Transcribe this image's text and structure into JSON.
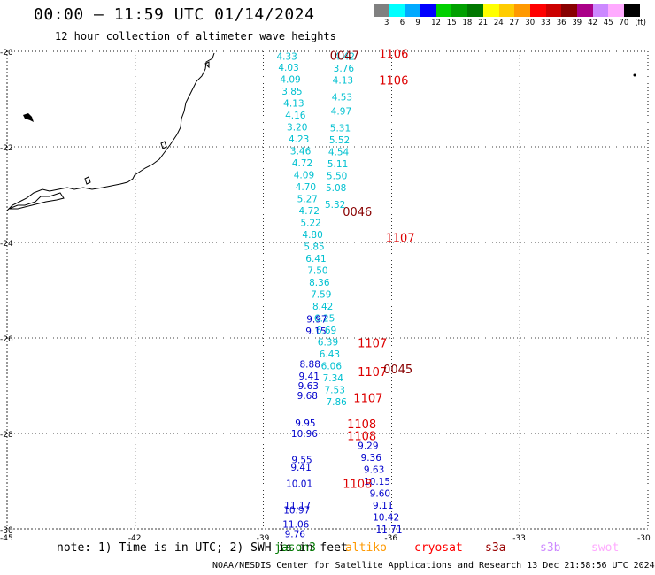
{
  "header": {
    "title": "00:00 – 11:59 UTC 01/14/2024",
    "subtitle": "12 hour collection of altimeter wave heights"
  },
  "color_scale": {
    "labels": [
      "3",
      "6",
      "9",
      "12",
      "15",
      "18",
      "21",
      "24",
      "27",
      "30",
      "33",
      "36",
      "39",
      "42",
      "45",
      "70",
      "(ft)"
    ],
    "colors": [
      "#808080",
      "#00ffff",
      "#00aaff",
      "#0000ff",
      "#00d000",
      "#00a000",
      "#007800",
      "#ffff00",
      "#ffcc00",
      "#ff9900",
      "#ff0000",
      "#cc0000",
      "#880000",
      "#aa0088",
      "#cc88ff",
      "#ffaaff",
      "#000000"
    ]
  },
  "axes": {
    "lat_labels": [
      "-20",
      "-22",
      "-24",
      "-26",
      "-28",
      "-30"
    ],
    "lon_labels": [
      "-45",
      "-42",
      "-39",
      "-36",
      "-33",
      "-30"
    ]
  },
  "map_data": {
    "type": "altimeter wave heights",
    "lat_range": [
      -30,
      -20
    ],
    "lon_range": [
      -45,
      -30
    ],
    "tracks": [
      {
        "color": "#00c0d0",
        "points": [
          {
            "lat": -20.1,
            "lon": -38.45,
            "v": "4.33"
          },
          {
            "lat": -20.33,
            "lon": -38.41,
            "v": "4.03"
          },
          {
            "lat": -20.58,
            "lon": -38.37,
            "v": "4.09"
          },
          {
            "lat": -20.83,
            "lon": -38.33,
            "v": "3.85"
          },
          {
            "lat": -21.08,
            "lon": -38.29,
            "v": "4.13"
          },
          {
            "lat": -21.33,
            "lon": -38.25,
            "v": "4.16"
          },
          {
            "lat": -21.58,
            "lon": -38.21,
            "v": "3.20"
          },
          {
            "lat": -21.83,
            "lon": -38.17,
            "v": "4.23"
          },
          {
            "lat": -22.08,
            "lon": -38.13,
            "v": "3.46"
          },
          {
            "lat": -22.33,
            "lon": -38.09,
            "v": "4.72"
          },
          {
            "lat": -22.58,
            "lon": -38.05,
            "v": "4.09"
          },
          {
            "lat": -22.83,
            "lon": -38.01,
            "v": "4.70"
          },
          {
            "lat": -23.08,
            "lon": -37.97,
            "v": "5.27"
          },
          {
            "lat": -23.33,
            "lon": -37.93,
            "v": "4.72"
          },
          {
            "lat": -23.58,
            "lon": -37.89,
            "v": "5.22"
          },
          {
            "lat": -23.83,
            "lon": -37.85,
            "v": "4.80"
          },
          {
            "lat": -24.08,
            "lon": -37.81,
            "v": "5.85"
          },
          {
            "lat": -24.33,
            "lon": -37.77,
            "v": "6.41"
          },
          {
            "lat": -24.58,
            "lon": -37.73,
            "v": "7.50"
          },
          {
            "lat": -24.83,
            "lon": -37.69,
            "v": "8.36"
          },
          {
            "lat": -25.08,
            "lon": -37.65,
            "v": "7.59"
          },
          {
            "lat": -25.33,
            "lon": -37.61,
            "v": "8.42"
          },
          {
            "lat": -25.58,
            "lon": -37.57,
            "v": "6.25"
          },
          {
            "lat": -25.83,
            "lon": -37.53,
            "v": "6.69"
          },
          {
            "lat": -26.08,
            "lon": -37.49,
            "v": "6.39"
          },
          {
            "lat": -26.33,
            "lon": -37.45,
            "v": "6.43"
          },
          {
            "lat": -26.58,
            "lon": -37.41,
            "v": "6.06"
          },
          {
            "lat": -26.83,
            "lon": -37.37,
            "v": "7.34"
          },
          {
            "lat": -27.08,
            "lon": -37.33,
            "v": "7.53"
          },
          {
            "lat": -27.33,
            "lon": -37.29,
            "v": "7.86"
          }
        ]
      },
      {
        "color": "#00c0d0",
        "points": [
          {
            "lat": -20.1,
            "lon": -37.1,
            "v": "4.42"
          },
          {
            "lat": -20.35,
            "lon": -37.12,
            "v": "3.76"
          },
          {
            "lat": -20.6,
            "lon": -37.14,
            "v": "4.13"
          },
          {
            "lat": -20.95,
            "lon": -37.16,
            "v": "4.53"
          },
          {
            "lat": -21.25,
            "lon": -37.18,
            "v": "4.97"
          },
          {
            "lat": -21.6,
            "lon": -37.2,
            "v": "5.31"
          },
          {
            "lat": -21.85,
            "lon": -37.22,
            "v": "5.52"
          },
          {
            "lat": -22.1,
            "lon": -37.24,
            "v": "4.54"
          },
          {
            "lat": -22.35,
            "lon": -37.26,
            "v": "5.11"
          },
          {
            "lat": -22.6,
            "lon": -37.28,
            "v": "5.50"
          },
          {
            "lat": -22.85,
            "lon": -37.3,
            "v": "5.08"
          },
          {
            "lat": -23.2,
            "lon": -37.32,
            "v": "5.32"
          }
        ]
      },
      {
        "color": "#0000cc",
        "points": [
          {
            "lat": -25.6,
            "lon": -37.75,
            "v": "9.97"
          },
          {
            "lat": -25.85,
            "lon": -37.77,
            "v": "9.15"
          },
          {
            "lat": -26.55,
            "lon": -37.91,
            "v": "8.88"
          },
          {
            "lat": -26.8,
            "lon": -37.93,
            "v": "9.41"
          },
          {
            "lat": -27.0,
            "lon": -37.95,
            "v": "9.63"
          },
          {
            "lat": -27.2,
            "lon": -37.97,
            "v": "9.68"
          },
          {
            "lat": -27.78,
            "lon": -38.02,
            "v": "9.95"
          },
          {
            "lat": -28.0,
            "lon": -38.04,
            "v": "10.96"
          },
          {
            "lat": -28.55,
            "lon": -38.1,
            "v": "9.55"
          },
          {
            "lat": -28.7,
            "lon": -38.12,
            "v": "9.41"
          },
          {
            "lat": -29.05,
            "lon": -38.16,
            "v": "10.01"
          },
          {
            "lat": -29.5,
            "lon": -38.2,
            "v": "11.17"
          },
          {
            "lat": -29.6,
            "lon": -38.22,
            "v": "10.97"
          },
          {
            "lat": -29.9,
            "lon": -38.24,
            "v": "11.06"
          },
          {
            "lat": -30.1,
            "lon": -38.26,
            "v": "9.76"
          }
        ]
      },
      {
        "color": "#0000cc",
        "points": [
          {
            "lat": -28.25,
            "lon": -36.55,
            "v": "9.29"
          },
          {
            "lat": -28.5,
            "lon": -36.48,
            "v": "9.36"
          },
          {
            "lat": -28.75,
            "lon": -36.41,
            "v": "9.63"
          },
          {
            "lat": -29.0,
            "lon": -36.34,
            "v": "10.15"
          },
          {
            "lat": -29.25,
            "lon": -36.27,
            "v": "9.60"
          },
          {
            "lat": -29.5,
            "lon": -36.2,
            "v": "9.11"
          },
          {
            "lat": -29.75,
            "lon": -36.13,
            "v": "10.42"
          },
          {
            "lat": -30.0,
            "lon": -36.06,
            "v": "11.71"
          }
        ]
      }
    ],
    "time_labels": [
      {
        "lat": -20.08,
        "lon": -37.1,
        "v": "0047",
        "color": "#880000"
      },
      {
        "lat": -20.05,
        "lon": -35.95,
        "v": "1106",
        "color": "#dd0000"
      },
      {
        "lat": -20.6,
        "lon": -35.95,
        "v": "1106",
        "color": "#dd0000"
      },
      {
        "lat": -23.35,
        "lon": -36.8,
        "v": "0046",
        "color": "#880000"
      },
      {
        "lat": -23.9,
        "lon": -35.8,
        "v": "1107",
        "color": "#dd0000"
      },
      {
        "lat": -26.1,
        "lon": -36.45,
        "v": "1107",
        "color": "#dd0000"
      },
      {
        "lat": -26.7,
        "lon": -36.45,
        "v": "1107",
        "color": "#dd0000"
      },
      {
        "lat": -26.65,
        "lon": -35.85,
        "v": "0045",
        "color": "#880000"
      },
      {
        "lat": -27.25,
        "lon": -36.55,
        "v": "1107",
        "color": "#dd0000"
      },
      {
        "lat": -27.8,
        "lon": -36.7,
        "v": "1108",
        "color": "#dd0000"
      },
      {
        "lat": -28.05,
        "lon": -36.7,
        "v": "1108",
        "color": "#dd0000"
      },
      {
        "lat": -29.05,
        "lon": -36.8,
        "v": "1108",
        "color": "#dd0000"
      }
    ]
  },
  "footer": {
    "note": "note:  1) Time is in UTC;  2) SWH is in feet",
    "credit": "NOAA/NESDIS Center for Satellite Applications and Research   13 Dec 21:58:56 UTC 2024",
    "satellites": [
      {
        "name": "jason3",
        "color": "#007800"
      },
      {
        "name": "altiko",
        "color": "#ff9900"
      },
      {
        "name": "cryosat",
        "color": "#ff0000"
      },
      {
        "name": "s3a",
        "color": "#990000"
      },
      {
        "name": "s3b",
        "color": "#cc88ff"
      },
      {
        "name": "swot",
        "color": "#ffaaff"
      }
    ]
  }
}
